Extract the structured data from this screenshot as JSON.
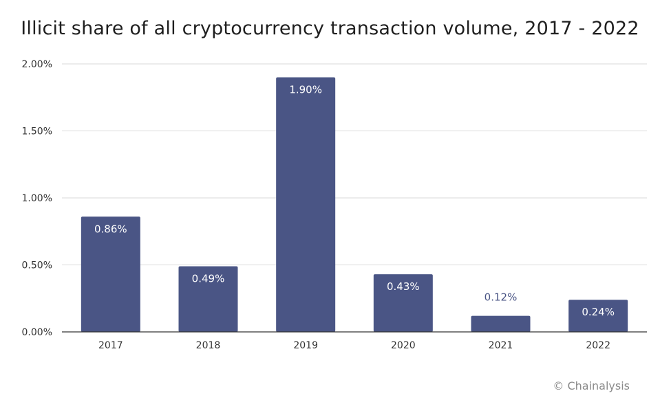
{
  "chart_data": {
    "type": "bar",
    "title": "Illicit share of all cryptocurrency transaction volume, 2017 - 2022",
    "categories": [
      "2017",
      "2018",
      "2019",
      "2020",
      "2021",
      "2022"
    ],
    "values": [
      0.86,
      0.49,
      1.9,
      0.43,
      0.12,
      0.24
    ],
    "data_labels": [
      "0.86%",
      "0.49%",
      "1.90%",
      "0.43%",
      "0.12%",
      "0.24%"
    ],
    "y_ticks": [
      0,
      0.5,
      1.0,
      1.5,
      2.0
    ],
    "y_tick_labels": [
      "0.00%",
      "0.50%",
      "1.00%",
      "1.50%",
      "2.00%"
    ],
    "ylim": [
      0,
      2.0
    ],
    "xlabel": "",
    "ylabel": "",
    "grid": true,
    "colors": {
      "bar": "#4a5585",
      "label_inside": "#ffffff",
      "label_outside": "#4a5585",
      "grid": "#d9d9d9",
      "axis": "#333333"
    }
  },
  "credit": "© Chainalysis"
}
